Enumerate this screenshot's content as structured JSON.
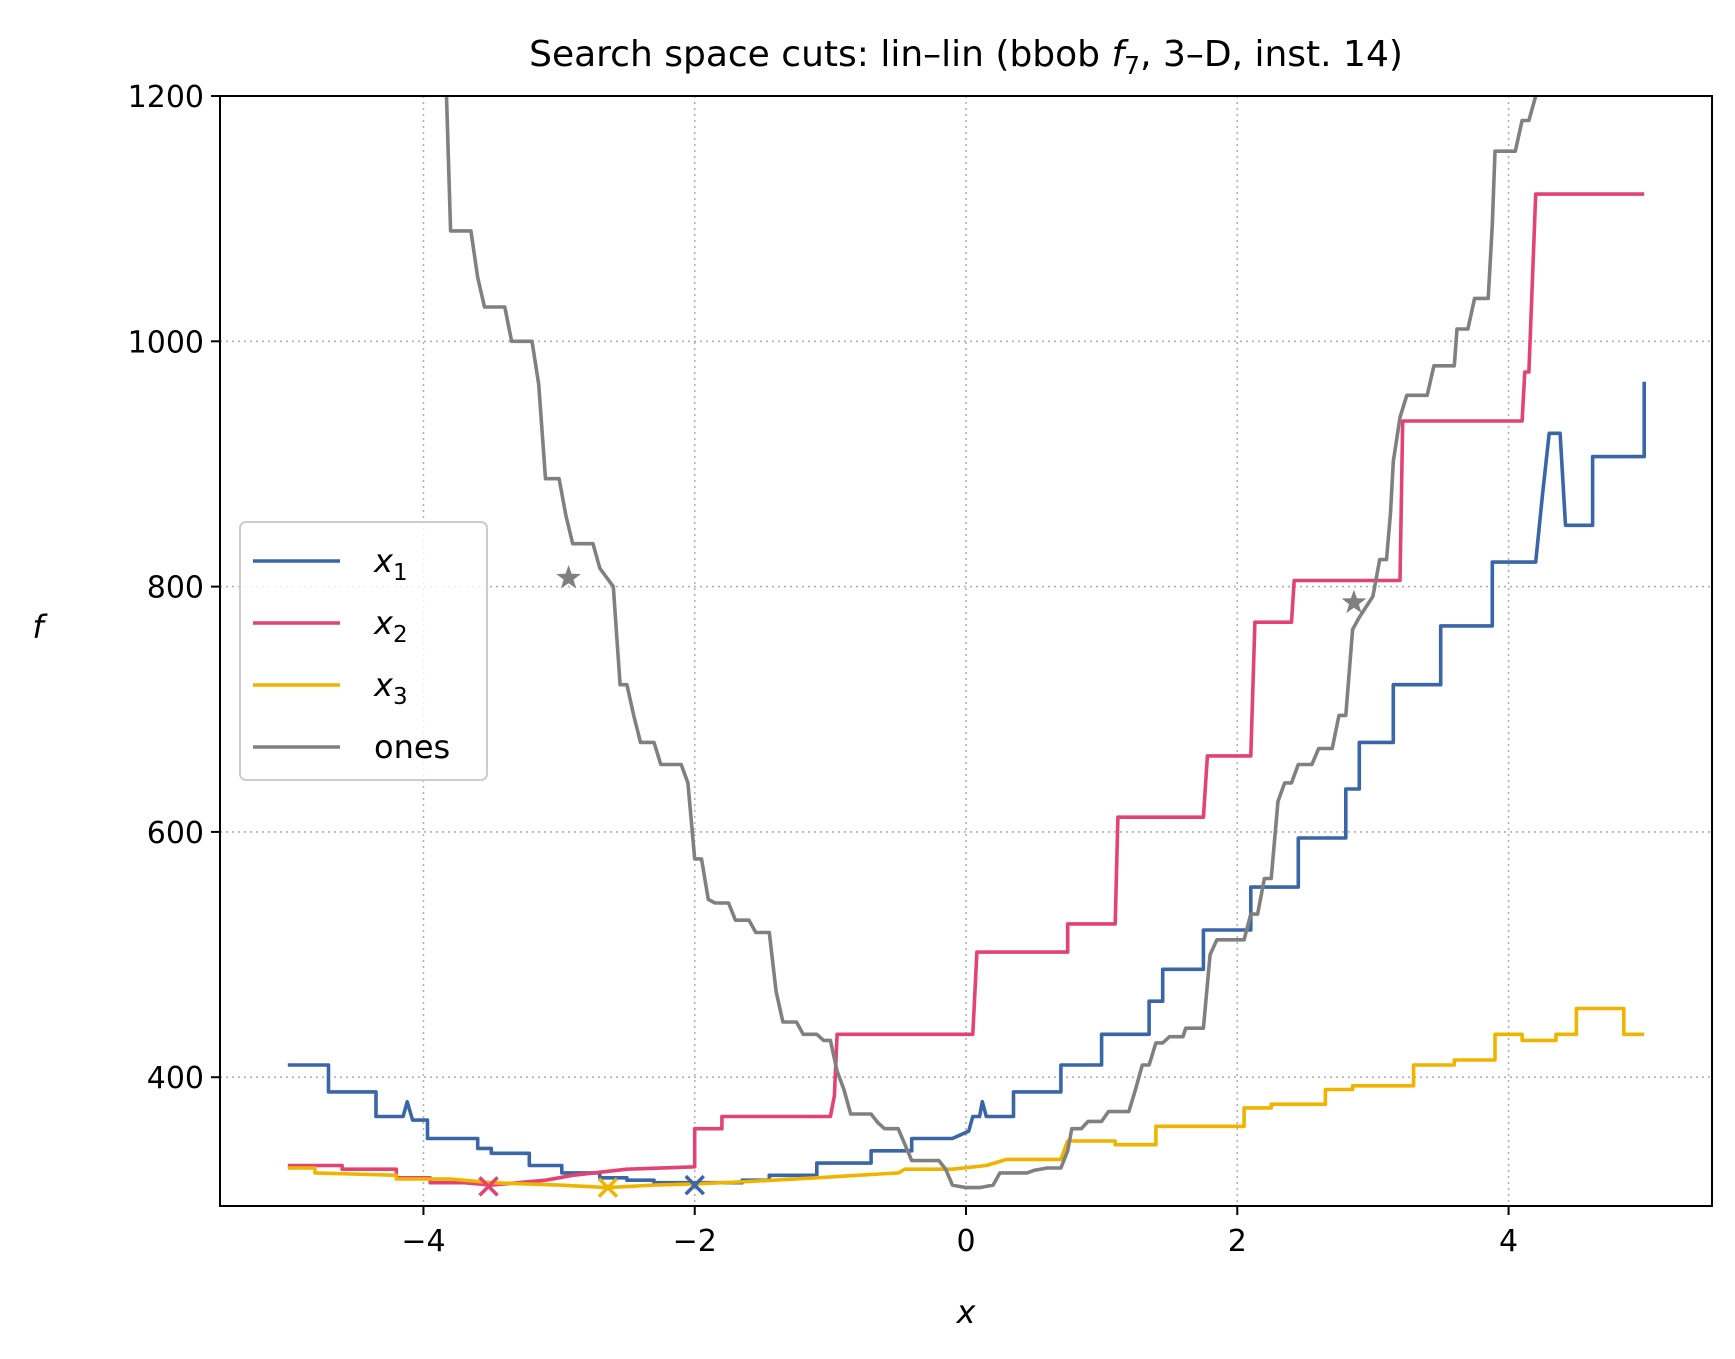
{
  "chart_data": {
    "type": "line",
    "title": "Search space cuts: lin–lin (bbob f7, 3–D, inst. 14)",
    "title_parts": {
      "prefix": "Search space cuts: lin–lin (bbob ",
      "func": "f",
      "func_sub": "7",
      "suffix": ", 3–D, inst. 14)"
    },
    "xlabel": "x",
    "ylabel": "f",
    "xlim": [
      -5.5,
      5.5
    ],
    "ylim": [
      295,
      1200
    ],
    "xticks": [
      -4,
      -2,
      0,
      2,
      4
    ],
    "xtick_labels": [
      "−4",
      "−2",
      "0",
      "2",
      "4"
    ],
    "yticks": [
      400,
      600,
      800,
      1000,
      1200
    ],
    "ytick_labels": [
      "400",
      "600",
      "800",
      "1000",
      "1200"
    ],
    "grid": true,
    "legend_position": "center-left",
    "series": [
      {
        "name": "x1",
        "label_base": "x",
        "label_sub": "1",
        "color": "#3a66a8",
        "points": [
          [
            -5.0,
            410
          ],
          [
            -4.7,
            410
          ],
          [
            -4.7,
            388
          ],
          [
            -4.35,
            388
          ],
          [
            -4.35,
            368
          ],
          [
            -4.15,
            368
          ],
          [
            -4.12,
            380
          ],
          [
            -4.08,
            365
          ],
          [
            -3.97,
            365
          ],
          [
            -3.97,
            350
          ],
          [
            -3.6,
            350
          ],
          [
            -3.6,
            342
          ],
          [
            -3.5,
            342
          ],
          [
            -3.5,
            338
          ],
          [
            -3.22,
            338
          ],
          [
            -3.22,
            328
          ],
          [
            -2.98,
            328
          ],
          [
            -2.98,
            322
          ],
          [
            -2.7,
            322
          ],
          [
            -2.7,
            318
          ],
          [
            -2.5,
            318
          ],
          [
            -2.5,
            316
          ],
          [
            -2.3,
            316
          ],
          [
            -2.3,
            314
          ],
          [
            -2.0,
            314
          ],
          [
            -1.65,
            314
          ],
          [
            -1.65,
            316
          ],
          [
            -1.45,
            316
          ],
          [
            -1.45,
            320
          ],
          [
            -1.1,
            320
          ],
          [
            -1.1,
            330
          ],
          [
            -0.7,
            330
          ],
          [
            -0.7,
            340
          ],
          [
            -0.4,
            340
          ],
          [
            -0.4,
            350
          ],
          [
            -0.1,
            350
          ],
          [
            0.02,
            356
          ],
          [
            0.05,
            368
          ],
          [
            0.1,
            368
          ],
          [
            0.12,
            380
          ],
          [
            0.15,
            368
          ],
          [
            0.35,
            368
          ],
          [
            0.35,
            388
          ],
          [
            0.7,
            388
          ],
          [
            0.7,
            410
          ],
          [
            1.0,
            410
          ],
          [
            1.0,
            435
          ],
          [
            1.35,
            435
          ],
          [
            1.35,
            462
          ],
          [
            1.45,
            462
          ],
          [
            1.45,
            488
          ],
          [
            1.75,
            488
          ],
          [
            1.75,
            520
          ],
          [
            2.1,
            520
          ],
          [
            2.1,
            555
          ],
          [
            2.45,
            555
          ],
          [
            2.45,
            595
          ],
          [
            2.8,
            595
          ],
          [
            2.8,
            635
          ],
          [
            2.9,
            635
          ],
          [
            2.9,
            673
          ],
          [
            3.15,
            673
          ],
          [
            3.15,
            720
          ],
          [
            3.5,
            720
          ],
          [
            3.5,
            768
          ],
          [
            3.88,
            768
          ],
          [
            3.88,
            820
          ],
          [
            4.2,
            820
          ],
          [
            4.25,
            875
          ],
          [
            4.3,
            925
          ],
          [
            4.38,
            925
          ],
          [
            4.42,
            850
          ],
          [
            4.62,
            850
          ],
          [
            4.62,
            906
          ],
          [
            5.0,
            906
          ],
          [
            5.0,
            967
          ]
        ]
      },
      {
        "name": "x2",
        "label_base": "x",
        "label_sub": "2",
        "color": "#e34372",
        "points": [
          [
            -5.0,
            328
          ],
          [
            -4.6,
            328
          ],
          [
            -4.6,
            325
          ],
          [
            -4.2,
            325
          ],
          [
            -4.2,
            318
          ],
          [
            -3.95,
            318
          ],
          [
            -3.95,
            314
          ],
          [
            -3.7,
            314
          ],
          [
            -3.5,
            312
          ],
          [
            -3.3,
            314
          ],
          [
            -3.1,
            316
          ],
          [
            -3.0,
            318
          ],
          [
            -2.9,
            320
          ],
          [
            -2.5,
            325
          ],
          [
            -2.0,
            327
          ],
          [
            -2.0,
            358
          ],
          [
            -1.8,
            358
          ],
          [
            -1.8,
            368
          ],
          [
            -1.0,
            368
          ],
          [
            -0.97,
            385
          ],
          [
            -0.95,
            435
          ],
          [
            0.05,
            435
          ],
          [
            0.08,
            502
          ],
          [
            0.75,
            502
          ],
          [
            0.75,
            525
          ],
          [
            1.1,
            525
          ],
          [
            1.12,
            612
          ],
          [
            1.75,
            612
          ],
          [
            1.78,
            662
          ],
          [
            2.1,
            662
          ],
          [
            2.13,
            771
          ],
          [
            2.4,
            771
          ],
          [
            2.42,
            805
          ],
          [
            3.2,
            805
          ],
          [
            3.22,
            935
          ],
          [
            4.1,
            935
          ],
          [
            4.12,
            975
          ],
          [
            4.15,
            975
          ],
          [
            4.2,
            1120
          ],
          [
            5.0,
            1120
          ]
        ]
      },
      {
        "name": "x3",
        "label_base": "x",
        "label_sub": "3",
        "color": "#f0b400",
        "points": [
          [
            -5.0,
            326
          ],
          [
            -4.8,
            326
          ],
          [
            -4.8,
            322
          ],
          [
            -4.2,
            320
          ],
          [
            -4.2,
            317
          ],
          [
            -3.8,
            317
          ],
          [
            -3.5,
            314
          ],
          [
            -3.0,
            312
          ],
          [
            -2.64,
            310
          ],
          [
            -2.3,
            312
          ],
          [
            -2.0,
            313
          ],
          [
            -1.6,
            315
          ],
          [
            -1.1,
            318
          ],
          [
            -0.8,
            320
          ],
          [
            -0.5,
            322
          ],
          [
            -0.45,
            325
          ],
          [
            -0.1,
            325
          ],
          [
            0.15,
            328
          ],
          [
            0.3,
            333
          ],
          [
            0.5,
            333
          ],
          [
            0.7,
            333
          ],
          [
            0.75,
            348
          ],
          [
            1.1,
            348
          ],
          [
            1.1,
            345
          ],
          [
            1.4,
            345
          ],
          [
            1.4,
            360
          ],
          [
            2.05,
            360
          ],
          [
            2.05,
            375
          ],
          [
            2.25,
            375
          ],
          [
            2.25,
            378
          ],
          [
            2.65,
            378
          ],
          [
            2.65,
            390
          ],
          [
            2.85,
            390
          ],
          [
            2.85,
            393
          ],
          [
            3.3,
            393
          ],
          [
            3.3,
            410
          ],
          [
            3.6,
            410
          ],
          [
            3.6,
            414
          ],
          [
            3.9,
            414
          ],
          [
            3.9,
            435
          ],
          [
            4.1,
            435
          ],
          [
            4.1,
            430
          ],
          [
            4.35,
            430
          ],
          [
            4.35,
            435
          ],
          [
            4.5,
            435
          ],
          [
            4.5,
            456
          ],
          [
            4.85,
            456
          ],
          [
            4.85,
            435
          ],
          [
            5.0,
            435
          ]
        ]
      },
      {
        "name": "ones",
        "label_base": "ones",
        "label_sub": "",
        "color": "#808080",
        "points": [
          [
            -3.83,
            1200
          ],
          [
            -3.8,
            1090
          ],
          [
            -3.65,
            1090
          ],
          [
            -3.6,
            1052
          ],
          [
            -3.55,
            1028
          ],
          [
            -3.4,
            1028
          ],
          [
            -3.35,
            1000
          ],
          [
            -3.2,
            1000
          ],
          [
            -3.15,
            965
          ],
          [
            -3.1,
            888
          ],
          [
            -3.0,
            888
          ],
          [
            -2.95,
            858
          ],
          [
            -2.9,
            835
          ],
          [
            -2.75,
            835
          ],
          [
            -2.7,
            815
          ],
          [
            -2.6,
            800
          ],
          [
            -2.55,
            720
          ],
          [
            -2.5,
            720
          ],
          [
            -2.45,
            695
          ],
          [
            -2.4,
            673
          ],
          [
            -2.3,
            673
          ],
          [
            -2.25,
            655
          ],
          [
            -2.1,
            655
          ],
          [
            -2.05,
            640
          ],
          [
            -2.0,
            578
          ],
          [
            -1.95,
            578
          ],
          [
            -1.9,
            545
          ],
          [
            -1.85,
            542
          ],
          [
            -1.75,
            542
          ],
          [
            -1.7,
            528
          ],
          [
            -1.6,
            528
          ],
          [
            -1.55,
            518
          ],
          [
            -1.45,
            518
          ],
          [
            -1.4,
            470
          ],
          [
            -1.35,
            445
          ],
          [
            -1.25,
            445
          ],
          [
            -1.2,
            435
          ],
          [
            -1.1,
            435
          ],
          [
            -1.05,
            430
          ],
          [
            -1.0,
            430
          ],
          [
            -0.95,
            405
          ],
          [
            -0.9,
            390
          ],
          [
            -0.85,
            370
          ],
          [
            -0.7,
            370
          ],
          [
            -0.65,
            363
          ],
          [
            -0.6,
            358
          ],
          [
            -0.5,
            358
          ],
          [
            -0.45,
            345
          ],
          [
            -0.4,
            332
          ],
          [
            -0.2,
            332
          ],
          [
            -0.15,
            325
          ],
          [
            -0.1,
            312
          ],
          [
            0.0,
            310
          ],
          [
            0.1,
            310
          ],
          [
            0.2,
            312
          ],
          [
            0.25,
            322
          ],
          [
            0.45,
            322
          ],
          [
            0.5,
            324
          ],
          [
            0.6,
            326
          ],
          [
            0.7,
            326
          ],
          [
            0.75,
            340
          ],
          [
            0.78,
            358
          ],
          [
            0.85,
            358
          ],
          [
            0.9,
            364
          ],
          [
            1.0,
            364
          ],
          [
            1.05,
            372
          ],
          [
            1.1,
            372
          ],
          [
            1.2,
            372
          ],
          [
            1.25,
            390
          ],
          [
            1.3,
            410
          ],
          [
            1.35,
            410
          ],
          [
            1.4,
            428
          ],
          [
            1.45,
            428
          ],
          [
            1.5,
            433
          ],
          [
            1.6,
            433
          ],
          [
            1.62,
            440
          ],
          [
            1.75,
            440
          ],
          [
            1.8,
            500
          ],
          [
            1.85,
            512
          ],
          [
            2.05,
            512
          ],
          [
            2.1,
            533
          ],
          [
            2.15,
            533
          ],
          [
            2.2,
            562
          ],
          [
            2.25,
            562
          ],
          [
            2.3,
            625
          ],
          [
            2.35,
            640
          ],
          [
            2.4,
            640
          ],
          [
            2.45,
            655
          ],
          [
            2.55,
            655
          ],
          [
            2.6,
            668
          ],
          [
            2.7,
            668
          ],
          [
            2.75,
            695
          ],
          [
            2.8,
            695
          ],
          [
            2.85,
            765
          ],
          [
            2.9,
            775
          ],
          [
            3.0,
            792
          ],
          [
            3.05,
            822
          ],
          [
            3.1,
            822
          ],
          [
            3.13,
            860
          ],
          [
            3.15,
            902
          ],
          [
            3.2,
            938
          ],
          [
            3.25,
            956
          ],
          [
            3.4,
            956
          ],
          [
            3.45,
            980
          ],
          [
            3.6,
            980
          ],
          [
            3.62,
            1010
          ],
          [
            3.7,
            1010
          ],
          [
            3.75,
            1035
          ],
          [
            3.85,
            1035
          ],
          [
            3.88,
            1095
          ],
          [
            3.9,
            1155
          ],
          [
            4.05,
            1155
          ],
          [
            4.1,
            1180
          ],
          [
            4.15,
            1180
          ],
          [
            4.2,
            1200
          ]
        ]
      }
    ],
    "markers": [
      {
        "series": "x1",
        "symbol": "x",
        "x": -2.0,
        "y": 312
      },
      {
        "series": "x2",
        "symbol": "x",
        "x": -3.52,
        "y": 311
      },
      {
        "series": "x3",
        "symbol": "x",
        "x": -2.64,
        "y": 310
      },
      {
        "series": "ones",
        "symbol": "star",
        "x": -2.93,
        "y": 807
      },
      {
        "series": "ones",
        "symbol": "star",
        "x": 2.86,
        "y": 787
      }
    ]
  }
}
